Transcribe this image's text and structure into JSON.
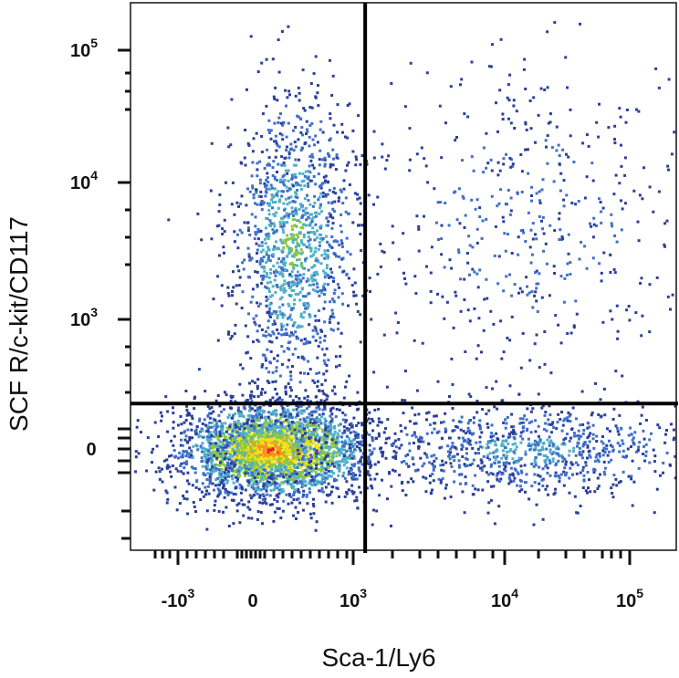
{
  "chart_data": {
    "type": "scatter",
    "subtype": "flow-cytometry-density-dot-plot",
    "xlabel": "Sca-1/Ly6",
    "ylabel": "SCF R/c-kit/CD117",
    "x_scale": "biexponential",
    "y_scale": "biexponential",
    "x_ticks": [
      {
        "value": -1000,
        "base": "-10",
        "exp": "3"
      },
      {
        "value": 0,
        "base": "0",
        "exp": ""
      },
      {
        "value": 1000,
        "base": "10",
        "exp": "3"
      },
      {
        "value": 10000,
        "base": "10",
        "exp": "4"
      },
      {
        "value": 100000,
        "base": "10",
        "exp": "5"
      }
    ],
    "y_ticks": [
      {
        "value": 0,
        "base": "0",
        "exp": ""
      },
      {
        "value": 1000,
        "base": "10",
        "exp": "3"
      },
      {
        "value": 10000,
        "base": "10",
        "exp": "4"
      },
      {
        "value": 100000,
        "base": "10",
        "exp": "5"
      }
    ],
    "xlim": [
      -2000,
      250000
    ],
    "ylim": [
      -2000,
      250000
    ],
    "quadrant_gate": {
      "x": 1200,
      "y": 350
    },
    "populations": [
      {
        "description": "c-kit negative, Sca-1 negative cluster",
        "x_center": 200,
        "y_center": 0,
        "density": "very high"
      },
      {
        "description": "c-kit positive, Sca-1 negative",
        "x_center": 400,
        "y_center": 4000,
        "density": "medium"
      },
      {
        "description": "c-kit negative, Sca-1 positive",
        "x_center": 20000,
        "y_center": 0,
        "density": "low"
      },
      {
        "description": "c-kit positive, Sca-1 positive",
        "x_center": 20000,
        "y_center": 5000,
        "density": "sparse"
      }
    ],
    "density_colors": [
      "#2a3f9a",
      "#3f6fc8",
      "#4fb0c6",
      "#8cc63f",
      "#f2e11c",
      "#f7941d",
      "#e31a1c"
    ],
    "grid": false,
    "legend": "none"
  }
}
